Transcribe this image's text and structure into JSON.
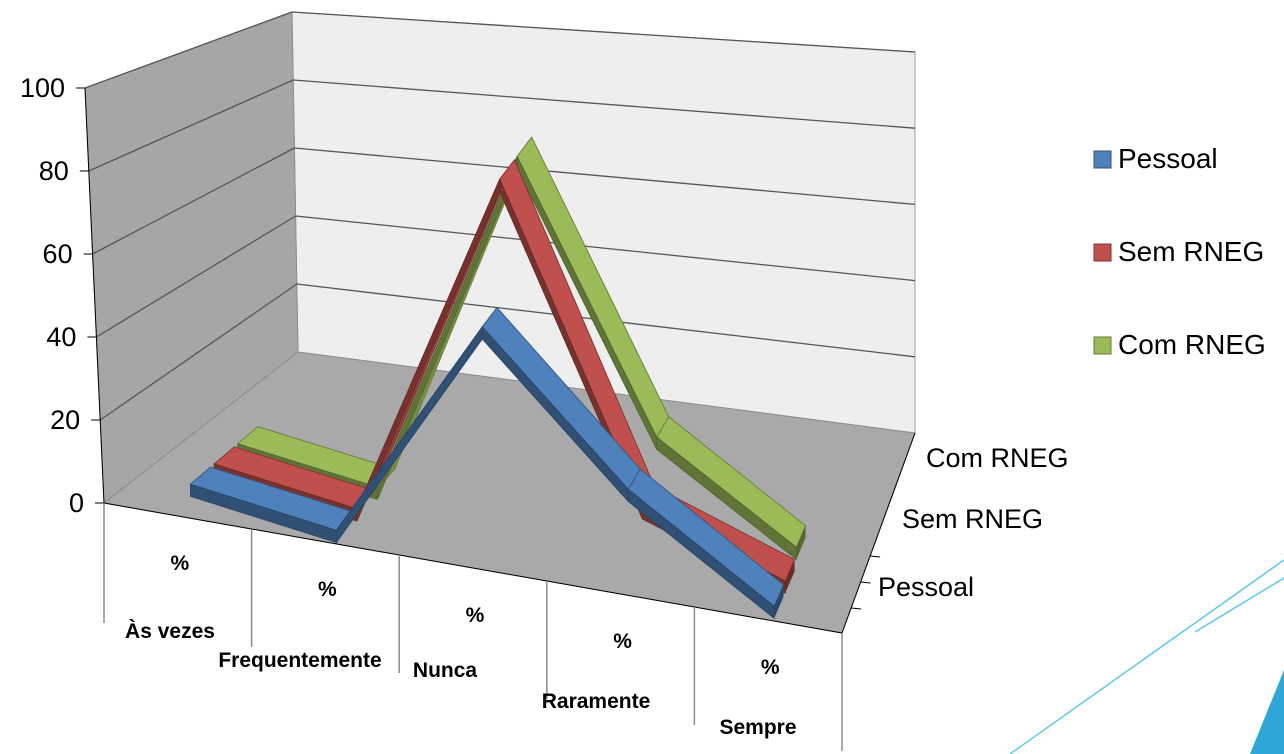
{
  "chart_data": {
    "type": "line",
    "title": "",
    "xlabel": "",
    "ylabel": "",
    "ylim": [
      0,
      100
    ],
    "y_ticks": [
      0,
      20,
      40,
      60,
      80,
      100
    ],
    "categories": [
      "Às vezes",
      "Frequentemente",
      "Nunca",
      "Raramente",
      "Sempre"
    ],
    "category_unit": "%",
    "depth_labels": [
      "Pessoal",
      "Sem RNEG",
      "Com RNEG"
    ],
    "series": [
      {
        "name": "Pessoal",
        "color": "#4F81BD",
        "values": [
          5,
          0,
          55,
          22,
          0
        ]
      },
      {
        "name": "Sem RNEG",
        "color": "#C0504D",
        "values": [
          5,
          0,
          85,
          12,
          0
        ]
      },
      {
        "name": "Com RNEG",
        "color": "#9BBB59",
        "values": [
          5,
          0,
          85,
          23,
          2
        ]
      }
    ],
    "legend_position": "right",
    "grid": true,
    "style": "3d-line"
  }
}
